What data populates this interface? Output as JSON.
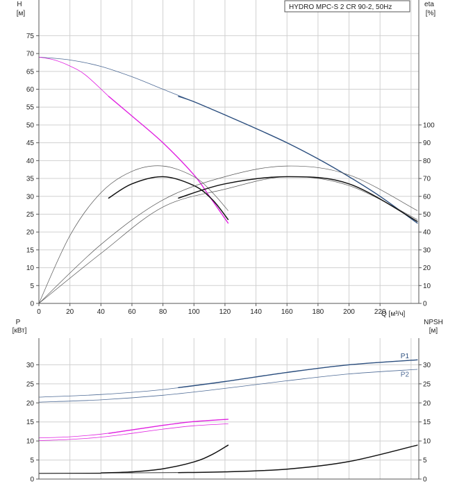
{
  "title_box": "HYDRO MPC-S 2 CR 90-2, 50Hz",
  "colors": {
    "grid": "#d0d0d0",
    "axis": "#555555",
    "blue": "#2b4e7e",
    "blue_thin": "#4d6a95",
    "magenta": "#e020e0",
    "black": "#111111",
    "gray": "#555555"
  },
  "chart_data": [
    {
      "type": "line",
      "name": "head-efficiency",
      "xlim": [
        0,
        245
      ],
      "x_ticks": [
        0,
        20,
        40,
        60,
        80,
        100,
        120,
        140,
        160,
        180,
        200,
        220
      ],
      "x_ticks_labels": [
        "0",
        "20",
        "40",
        "60",
        "80",
        "100",
        "120",
        "140",
        "160",
        "180",
        "200",
        "220"
      ],
      "xlabel": "Q [м³/ч]",
      "ylabel_left": "H",
      "ylabel_left_unit": "[м]",
      "ylim_left": [
        0,
        85
      ],
      "yticks_left": [
        0,
        5,
        10,
        15,
        20,
        25,
        30,
        35,
        40,
        45,
        50,
        55,
        60,
        65,
        70,
        75
      ],
      "yticks_left_labels": [
        "0",
        "5",
        "10",
        "15",
        "20",
        "25",
        "30",
        "35",
        "40",
        "45",
        "50",
        "55",
        "60",
        "65",
        "70",
        "75"
      ],
      "ylabel_right": "eta",
      "ylabel_right_unit": "[%]",
      "ylim_right": [
        0,
        170
      ],
      "yticks_right": [
        0,
        10,
        20,
        30,
        40,
        50,
        60,
        70,
        80,
        90,
        100
      ],
      "yticks_right_labels": [
        "0",
        "10",
        "20",
        "30",
        "40",
        "50",
        "60",
        "70",
        "80",
        "90",
        "100"
      ],
      "series": [
        {
          "axis": "left",
          "color": "blue_thin",
          "width": 0.8,
          "x": [
            0,
            20,
            40,
            60,
            80,
            100,
            120,
            140,
            160,
            180,
            200,
            220,
            244
          ],
          "y": [
            69,
            68.2,
            66.4,
            63.5,
            60,
            56.5,
            52.8,
            49,
            45,
            40.5,
            35.5,
            30,
            22.5
          ]
        },
        {
          "axis": "left",
          "color": "blue",
          "width": 1.4,
          "x": [
            90,
            100,
            120,
            140,
            160,
            180,
            200,
            220,
            244
          ],
          "y": [
            58,
            56.5,
            52.8,
            49,
            45,
            40.5,
            35.5,
            30,
            22.5
          ]
        },
        {
          "axis": "left",
          "color": "magenta",
          "width": 0.8,
          "x": [
            0,
            10,
            20,
            30,
            45
          ],
          "y": [
            69,
            68.2,
            66.5,
            64,
            58
          ]
        },
        {
          "axis": "left",
          "color": "magenta",
          "width": 1.4,
          "x": [
            45,
            60,
            80,
            100,
            110,
            122
          ],
          "y": [
            58,
            52.5,
            45,
            36,
            30,
            22.5
          ]
        },
        {
          "axis": "right",
          "color": "gray",
          "width": 0.7,
          "x": [
            0,
            20,
            40,
            60,
            80,
            100,
            112,
            122
          ],
          "y": [
            0,
            38,
            62,
            74,
            77,
            71,
            62,
            52
          ]
        },
        {
          "axis": "right",
          "color": "black",
          "width": 1.5,
          "x": [
            45,
            60,
            80,
            100,
            112,
            122
          ],
          "y": [
            59,
            67,
            71,
            66,
            58,
            47
          ]
        },
        {
          "axis": "right",
          "color": "gray",
          "width": 0.7,
          "x": [
            0,
            40,
            80,
            120,
            160,
            200,
            244
          ],
          "y": [
            0,
            33,
            58,
            71,
            77,
            72,
            52
          ]
        },
        {
          "axis": "right",
          "color": "gray",
          "width": 0.7,
          "x": [
            0,
            40,
            80,
            120,
            160,
            200,
            244
          ],
          "y": [
            0,
            28,
            54,
            64,
            71,
            66,
            47
          ]
        },
        {
          "axis": "right",
          "color": "black",
          "width": 1.5,
          "x": [
            90,
            120,
            160,
            200,
            244
          ],
          "y": [
            59,
            67,
            71,
            67,
            46
          ]
        }
      ]
    },
    {
      "type": "line",
      "name": "power-npsh",
      "xlim": [
        0,
        245
      ],
      "ylabel_left": "P",
      "ylabel_left_unit": "[кВт]",
      "ylim_left": [
        0,
        37
      ],
      "yticks_left": [
        0,
        5,
        10,
        15,
        20,
        25,
        30
      ],
      "yticks_left_labels": [
        "0",
        "5",
        "10",
        "15",
        "20",
        "25",
        "30"
      ],
      "ylabel_right": "NPSH",
      "ylabel_right_unit": "[м]",
      "ylim_right": [
        0,
        37
      ],
      "yticks_right": [
        0,
        5,
        10,
        15,
        20,
        25,
        30
      ],
      "yticks_right_labels": [
        "0",
        "5",
        "10",
        "15",
        "20",
        "25",
        "30"
      ],
      "series": [
        {
          "axis": "left",
          "color": "blue_thin",
          "width": 0.8,
          "x": [
            0,
            40,
            80,
            120,
            160,
            200,
            244
          ],
          "y": [
            21.5,
            22.2,
            23.5,
            25.6,
            28,
            30,
            31.3
          ]
        },
        {
          "axis": "left",
          "color": "blue",
          "width": 1.4,
          "x": [
            90,
            120,
            160,
            200,
            244
          ],
          "y": [
            24,
            25.6,
            28,
            30,
            31.3
          ]
        },
        {
          "axis": "left",
          "color": "blue_thin",
          "width": 0.8,
          "x": [
            0,
            40,
            80,
            120,
            160,
            200,
            244
          ],
          "y": [
            20.2,
            20.8,
            22,
            23.8,
            25.8,
            27.6,
            28.8
          ]
        },
        {
          "axis": "left",
          "color": "magenta",
          "width": 0.8,
          "x": [
            0,
            20,
            40,
            60,
            80,
            100,
            122
          ],
          "y": [
            10.8,
            11.1,
            11.8,
            12.9,
            14.1,
            15.1,
            15.7
          ]
        },
        {
          "axis": "left",
          "color": "magenta",
          "width": 1.4,
          "x": [
            45,
            60,
            80,
            100,
            122
          ],
          "y": [
            12,
            12.9,
            14.1,
            15.1,
            15.7
          ]
        },
        {
          "axis": "left",
          "color": "magenta",
          "width": 0.8,
          "x": [
            0,
            20,
            40,
            60,
            80,
            100,
            122
          ],
          "y": [
            10.1,
            10.4,
            11,
            12,
            13.1,
            14,
            14.5
          ]
        },
        {
          "axis": "right",
          "color": "black",
          "width": 0.8,
          "x": [
            0,
            40
          ],
          "y": [
            1.5,
            1.5
          ]
        },
        {
          "axis": "right",
          "color": "black",
          "width": 1.5,
          "x": [
            40,
            60,
            80,
            100,
            112,
            122
          ],
          "y": [
            1.6,
            1.9,
            2.7,
            4.5,
            6.5,
            8.9
          ]
        },
        {
          "axis": "right",
          "color": "black",
          "width": 0.8,
          "x": [
            0,
            90
          ],
          "y": [
            1.5,
            1.7
          ]
        },
        {
          "axis": "right",
          "color": "black",
          "width": 1.5,
          "x": [
            90,
            120,
            160,
            200,
            244
          ],
          "y": [
            1.7,
            1.9,
            2.6,
            4.6,
            8.9
          ]
        }
      ],
      "series_labels": [
        {
          "name": "P1",
          "x": 236,
          "y": 32.3,
          "color": "blue"
        },
        {
          "name": "P2",
          "x": 236,
          "y": 27.4,
          "color": "blue_thin"
        }
      ]
    }
  ]
}
